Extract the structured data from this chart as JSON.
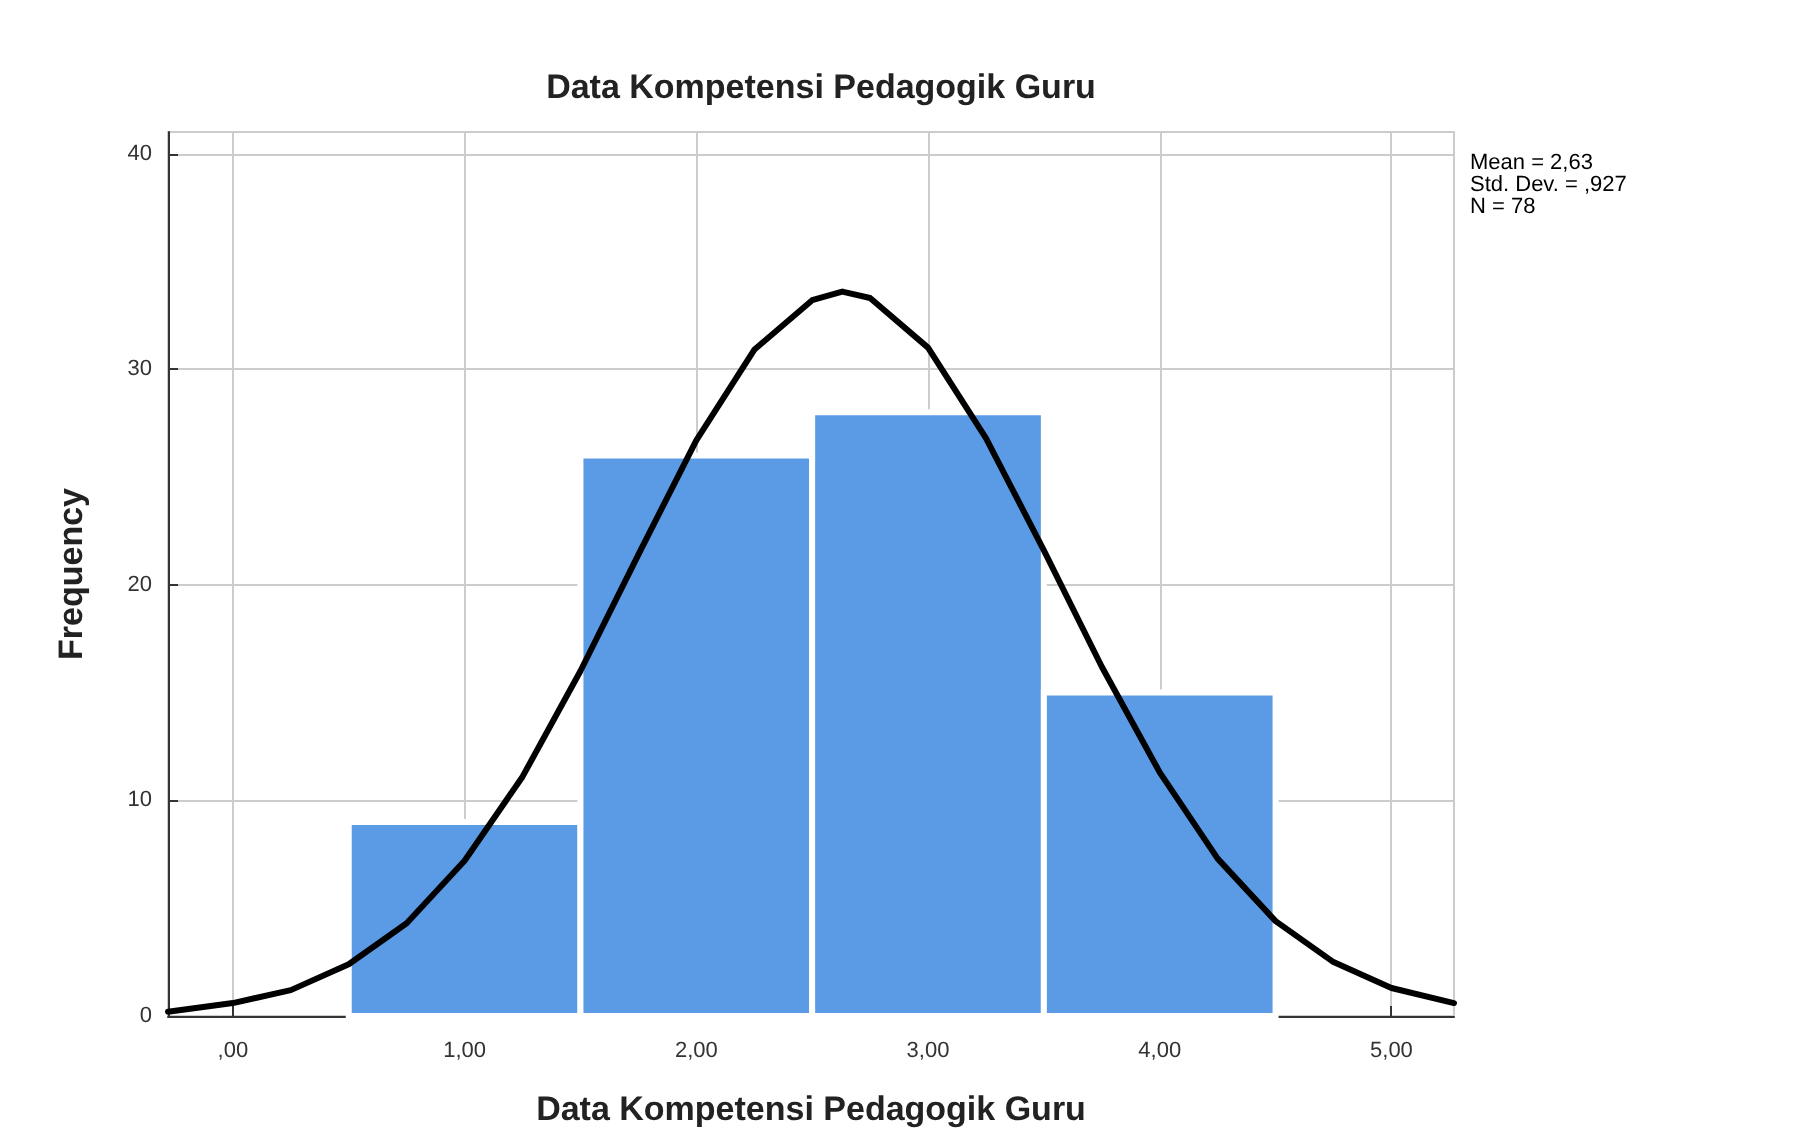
{
  "chart_data": {
    "type": "histogram",
    "title": "Data Kompetensi Pedagogik Guru",
    "xlabel": "Data Kompetensi Pedagogik Guru",
    "ylabel": "Frequency",
    "bins": [
      0.5,
      1.5,
      2.5,
      3.5,
      4.5
    ],
    "values": [
      9,
      26,
      28,
      15
    ],
    "color": "#5b9be6",
    "series": [
      {
        "type": "line",
        "color": "#000000",
        "x": [
          -0.28,
          0,
          0.25,
          0.5,
          0.75,
          1,
          1.25,
          1.5,
          1.75,
          2,
          2.25,
          2.5,
          2.63,
          2.75,
          3,
          3.25,
          3.5,
          3.75,
          4,
          4.25,
          4.5,
          4.75,
          5,
          5.27
        ],
        "values": [
          0.2,
          0.6,
          1.2,
          2.4,
          4.3,
          7.2,
          11.1,
          16.0,
          21.4,
          26.7,
          30.9,
          33.2,
          33.6,
          33.3,
          31.0,
          26.8,
          21.6,
          16.2,
          11.3,
          7.3,
          4.4,
          2.5,
          1.3,
          0.6
        ]
      }
    ],
    "xlim": [
      -0.28,
      5.27
    ],
    "ylim": [
      0,
      41
    ],
    "xticks": [
      {
        "value": 0,
        "label": ",00"
      },
      {
        "value": 1,
        "label": "1,00"
      },
      {
        "value": 2,
        "label": "2,00"
      },
      {
        "value": 3,
        "label": "3,00"
      },
      {
        "value": 4,
        "label": "4,00"
      },
      {
        "value": 5,
        "label": "5,00"
      }
    ],
    "yticks": [
      0,
      10,
      20,
      30,
      40
    ],
    "grid": true,
    "marker": "none",
    "line_style": "solid",
    "annotations": [
      "Mean = 2,63",
      "Std. Dev. = ,927",
      "N = 78"
    ]
  }
}
